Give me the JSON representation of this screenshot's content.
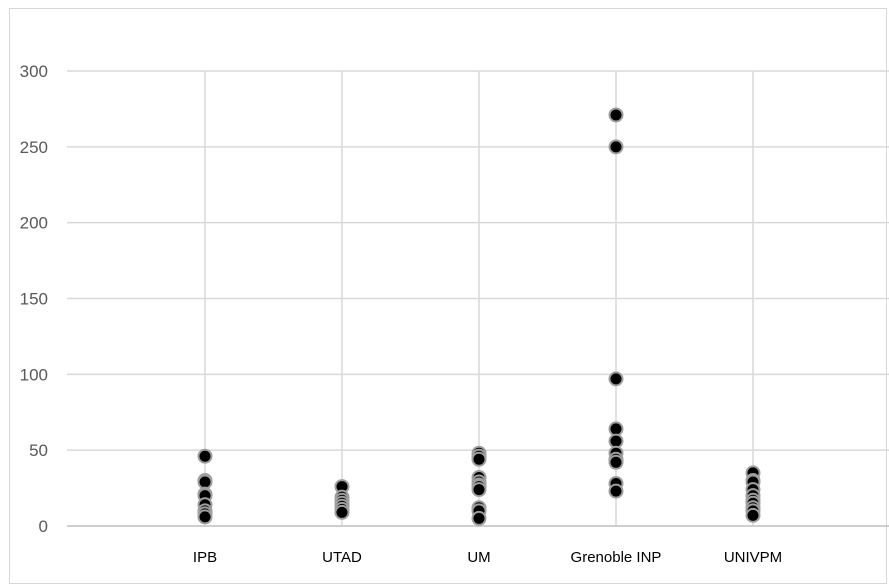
{
  "chart_data": {
    "type": "scatter",
    "title": "",
    "xlabel": "",
    "ylabel": "",
    "categories": [
      "IPB",
      "UTAD",
      "UM",
      "Grenoble INP",
      "UNIVPM"
    ],
    "ylim": [
      0,
      300
    ],
    "yticks": [
      0,
      50,
      100,
      150,
      200,
      250,
      300
    ],
    "grid": true,
    "legend": "none",
    "marker_color": "#000000",
    "marker_edge_color": "#9e9e9e",
    "gridline_color": "#d9d9d9",
    "values": [
      [
        46,
        30,
        29,
        21,
        20,
        14,
        10,
        8,
        6
      ],
      [
        26,
        19,
        17,
        15,
        13,
        11,
        9
      ],
      [
        48,
        46,
        44,
        32,
        29,
        27,
        26,
        24,
        12,
        10,
        5
      ],
      [
        271,
        250,
        97,
        64,
        56,
        48,
        44,
        42,
        28,
        23
      ],
      [
        35,
        30,
        29,
        24,
        20,
        17,
        15,
        12,
        10,
        7
      ]
    ]
  }
}
